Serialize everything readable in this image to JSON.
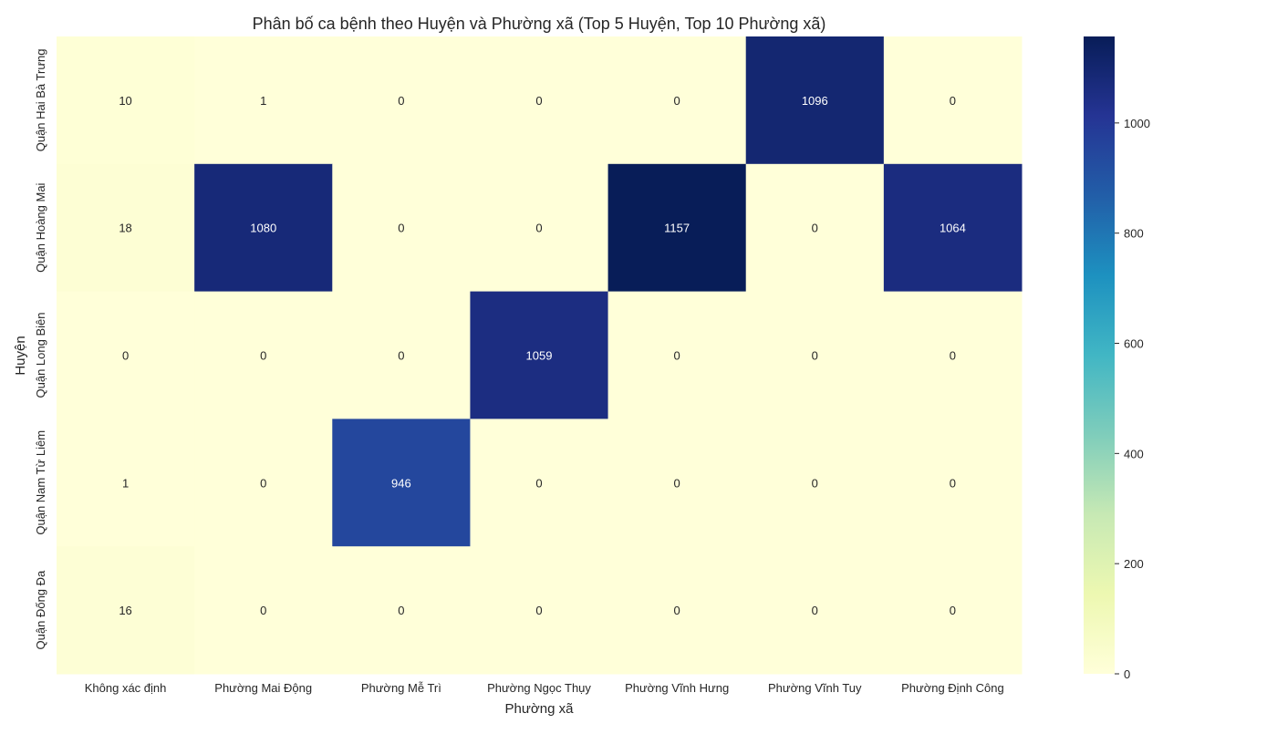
{
  "chart_data": {
    "type": "heatmap",
    "title": "Phân bố ca bệnh theo Huyện và Phường xã (Top 5 Huyện, Top 10 Phường xã)",
    "xlabel": "Phường xã",
    "ylabel": "Huyện",
    "x_categories": [
      "Không xác định",
      "Phường Mai Động",
      "Phường Mễ Trì",
      "Phường Ngọc Thụy",
      "Phường Vĩnh Hưng",
      "Phường Vĩnh Tuy",
      "Phường Định Công"
    ],
    "y_categories": [
      "Quận Hai Bà Trưng",
      "Quận Hoàng Mai",
      "Quận Long Biên",
      "Quận Nam Từ Liêm",
      "Quận Đống Đa"
    ],
    "values": [
      [
        10,
        1,
        0,
        0,
        0,
        1096,
        0
      ],
      [
        18,
        1080,
        0,
        0,
        1157,
        0,
        1064
      ],
      [
        0,
        0,
        0,
        1059,
        0,
        0,
        0
      ],
      [
        1,
        0,
        946,
        0,
        0,
        0,
        0
      ],
      [
        16,
        0,
        0,
        0,
        0,
        0,
        0
      ]
    ],
    "colorbar": {
      "colormap": "YlGnBu",
      "range": [
        0,
        1157
      ],
      "ticks": [
        0,
        200,
        400,
        600,
        800,
        1000
      ]
    },
    "grid": false,
    "annotations": true
  }
}
